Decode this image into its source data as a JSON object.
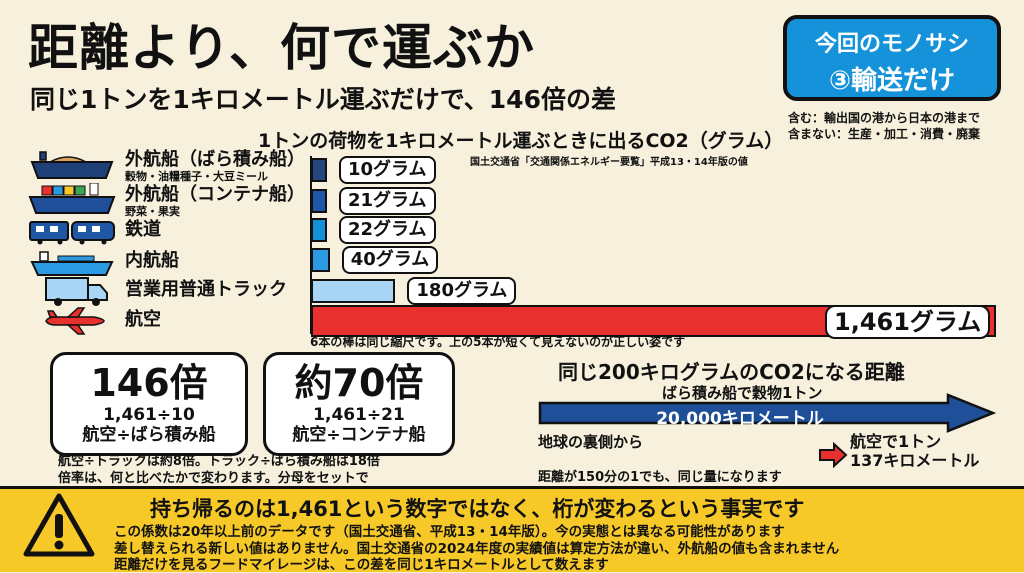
{
  "header": {
    "title": "距離より、何で運ぶか",
    "subtitle": "同じ1トンを1キロメートル運ぶだけで、146倍の差"
  },
  "badge": {
    "line1": "今回のモノサシ",
    "line2": "③輸送だけ"
  },
  "scope": {
    "included": "含む：輸出国の港から日本の港まで",
    "excluded": "含まない：生産・加工・消費・廃棄"
  },
  "chart_data": [
    {
      "type": "bar",
      "orientation": "horizontal",
      "title": "1トンの荷物を1キロメートル運ぶときに出るCO2（グラム）",
      "source": "国土交通省「交通関係エネルギー要覧」平成13・14年版の値",
      "categories": [
        "外航船（ばら積み船）",
        "外航船（コンテナ船）",
        "鉄道",
        "内航船",
        "営業用普通トラック",
        "航空"
      ],
      "category_notes": [
        "穀物・油糧種子・大豆ミール",
        "野菜・果実",
        "",
        "",
        "",
        ""
      ],
      "values": [
        10,
        21,
        22,
        40,
        180,
        1461
      ],
      "value_labels": [
        "10グラム",
        "21グラム",
        "22グラム",
        "40グラム",
        "180グラム",
        "1,461グラム"
      ],
      "unit": "グラム",
      "xlim": [
        0,
        1461
      ],
      "colors": [
        "#24457d",
        "#1f57a6",
        "#168fd8",
        "#2b9ae2",
        "#a9d5f5",
        "#e8302f"
      ],
      "icons": [
        "bulk-carrier-ship-icon",
        "container-ship-icon",
        "train-icon",
        "coastal-ship-icon",
        "truck-icon",
        "airplane-icon"
      ],
      "note": "6本の棒は同じ縮尺です。上の5本が短くて見えないのが正しい姿です"
    },
    {
      "type": "bar",
      "orientation": "horizontal",
      "title": "同じ200キログラムのCO2になる距離",
      "categories": [
        "ばら積み船で穀物1トン",
        "航空で1トン"
      ],
      "values": [
        20000,
        137
      ],
      "unit": "キロメートル",
      "value_labels": [
        "20,000キロメートル",
        "137キロメートル"
      ],
      "colors": [
        "#1f4f99",
        "#e8302f"
      ]
    }
  ],
  "ratios": [
    {
      "big": "146倍",
      "calc": "1,461÷10",
      "desc": "航空÷ばら積み船"
    },
    {
      "big": "約70倍",
      "calc": "1,461÷21",
      "desc": "航空÷コンテナ船"
    }
  ],
  "ratio_notes": [
    "航空÷トラックは約8倍。トラック÷ばら積み船は18倍",
    "倍率は、何と比べたかで変わります。分母をセットで"
  ],
  "distance": {
    "title": "同じ200キログラムのCO2になる距離",
    "ship_label": "ばら積み船で穀物1トン",
    "ship_value": "20,000キロメートル",
    "ship_note": "地球の裏側から",
    "air_label": "航空で1トン",
    "air_value": "137キロメートル",
    "note": "距離が150分の1でも、同じ量になります"
  },
  "warning": {
    "headline": "持ち帰るのは1,461という数字ではなく、桁が変わるという事実です",
    "lines": [
      "この係数は20年以上前のデータです（国土交通省、平成13・14年版）。今の実態とは異なる可能性があります",
      "差し替えられる新しい値はありません。国土交通省の2024年度の実績値は算定方法が違い、外航船の値も含まれません",
      "距離だけを見るフードマイレージは、この差を同じ1キロメートルとして数えます"
    ],
    "icon": "warning-icon"
  }
}
